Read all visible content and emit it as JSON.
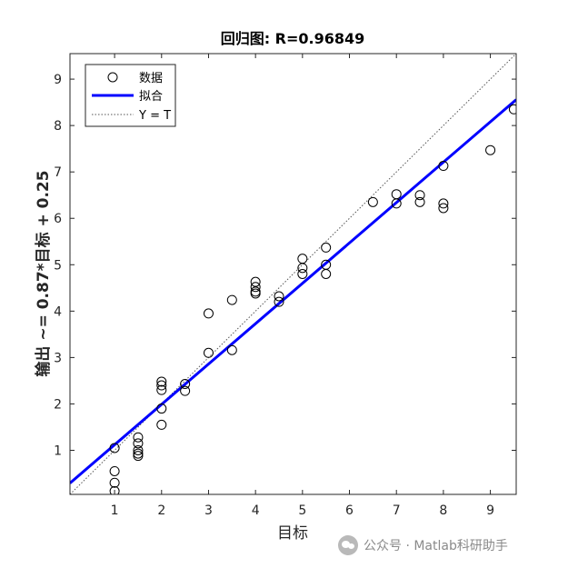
{
  "chart_data": {
    "type": "scatter",
    "title": "回归图: R=0.96849",
    "xlabel": "目标",
    "ylabel": "输出 ~= 0.87*目标 + 0.25",
    "xlim": [
      0.05,
      9.55
    ],
    "ylim": [
      0.05,
      9.55
    ],
    "xticks": [
      1,
      2,
      3,
      4,
      5,
      6,
      7,
      8,
      9
    ],
    "yticks": [
      1,
      2,
      3,
      4,
      5,
      6,
      7,
      8,
      9
    ],
    "grid": false,
    "legend": {
      "position": "top-left",
      "entries": [
        "数据",
        "拟合",
        "Y = T"
      ]
    },
    "fit": {
      "slope": 0.87,
      "intercept": 0.25,
      "color": "#0000ff"
    },
    "identity_line_color": "#555555",
    "marker_color": "#000000",
    "points": [
      [
        1,
        1.05
      ],
      [
        1,
        0.55
      ],
      [
        1,
        0.3
      ],
      [
        1,
        0.12
      ],
      [
        1.5,
        1.28
      ],
      [
        1.5,
        1.15
      ],
      [
        1.5,
        1.0
      ],
      [
        1.5,
        0.93
      ],
      [
        1.5,
        0.88
      ],
      [
        2,
        2.48
      ],
      [
        2,
        2.4
      ],
      [
        2,
        2.3
      ],
      [
        2,
        1.9
      ],
      [
        2,
        1.55
      ],
      [
        2.5,
        2.43
      ],
      [
        2.5,
        2.28
      ],
      [
        3,
        3.95
      ],
      [
        3,
        3.1
      ],
      [
        3.5,
        4.24
      ],
      [
        3.5,
        3.16
      ],
      [
        4,
        4.63
      ],
      [
        4,
        4.52
      ],
      [
        4,
        4.42
      ],
      [
        4,
        4.38
      ],
      [
        4.5,
        4.32
      ],
      [
        4.5,
        4.2
      ],
      [
        5,
        5.13
      ],
      [
        5,
        4.93
      ],
      [
        5,
        4.8
      ],
      [
        5.5,
        5.37
      ],
      [
        5.5,
        5.0
      ],
      [
        5.5,
        4.8
      ],
      [
        6.5,
        6.35
      ],
      [
        7,
        6.52
      ],
      [
        7,
        6.32
      ],
      [
        7.5,
        6.5
      ],
      [
        7.5,
        6.35
      ],
      [
        8,
        7.13
      ],
      [
        8,
        6.32
      ],
      [
        8,
        6.22
      ],
      [
        9,
        7.47
      ],
      [
        9.5,
        8.35
      ]
    ]
  },
  "watermark": {
    "text": "公众号 · Matlab科研助手"
  }
}
